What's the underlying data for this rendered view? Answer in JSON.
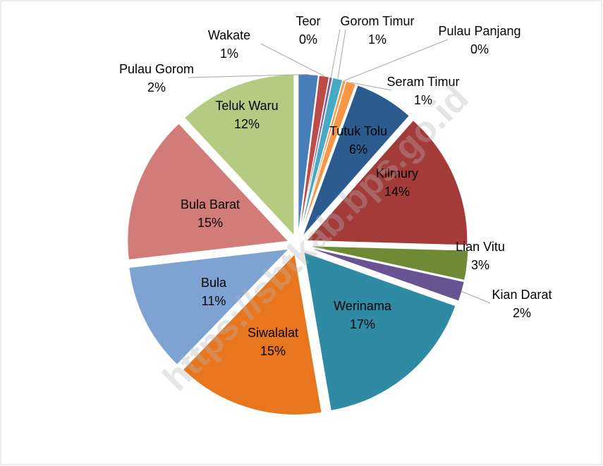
{
  "chart_data": {
    "type": "pie",
    "categories": [
      "Pulau Gorom",
      "Wakate",
      "Teor",
      "Gorom Timur",
      "Pulau Panjang",
      "Seram Timur",
      "Tutuk Tolu",
      "Kilmury",
      "Lian Vitu",
      "Kian Darat",
      "Werinama",
      "Siwalalat",
      "Bula",
      "Bula Barat",
      "Teluk Waru"
    ],
    "values": [
      2,
      1,
      0.3,
      1,
      0.3,
      1,
      6,
      14,
      3,
      2,
      17,
      15,
      11,
      15,
      12
    ],
    "value_labels": [
      "2%",
      "1%",
      "0%",
      "1%",
      "0%",
      "1%",
      "6%",
      "14%",
      "3%",
      "2%",
      "17%",
      "15%",
      "11%",
      "15%",
      "12%"
    ],
    "colors": [
      "#4a7ebb",
      "#be4b48",
      "#7d60a0",
      "#46aac5",
      "#f79646",
      "#f79646",
      "#2c5c8f",
      "#a33b39",
      "#6e8a35",
      "#6a5392",
      "#2f8aa3",
      "#e8761f",
      "#7ea3d3",
      "#d27c7a",
      "#b3cc82"
    ],
    "watermark": "https://sbtkab.bps.go.id"
  }
}
